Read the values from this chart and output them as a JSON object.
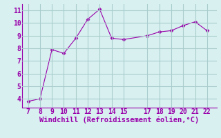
{
  "x": [
    7,
    8,
    9,
    10,
    11,
    12,
    13,
    14,
    15,
    17,
    18,
    19,
    20,
    21,
    22
  ],
  "y": [
    3.8,
    4.0,
    7.9,
    7.6,
    8.8,
    10.3,
    11.1,
    8.8,
    8.7,
    9.0,
    9.3,
    9.4,
    9.8,
    10.1,
    9.4
  ],
  "line_color": "#9900aa",
  "marker": "D",
  "marker_size": 2.5,
  "xlabel": "Windchill (Refroidissement éolien,°C)",
  "xlim": [
    6.5,
    22.8
  ],
  "ylim": [
    3.3,
    11.5
  ],
  "xticks": [
    7,
    8,
    9,
    10,
    11,
    12,
    13,
    14,
    15,
    17,
    18,
    19,
    20,
    21,
    22
  ],
  "yticks": [
    4,
    5,
    6,
    7,
    8,
    9,
    10,
    11
  ],
  "bg_color": "#d8f0f0",
  "grid_color": "#aacccc",
  "spine_color": "#9900aa",
  "xlabel_color": "#9900aa",
  "tick_color": "#9900aa",
  "xlabel_fontsize": 7.5,
  "tick_fontsize": 7.0
}
